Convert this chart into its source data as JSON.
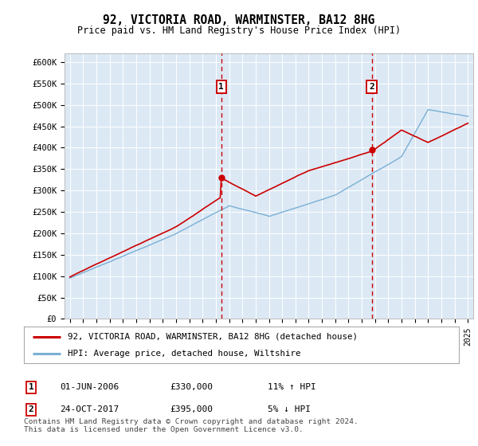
{
  "title": "92, VICTORIA ROAD, WARMINSTER, BA12 8HG",
  "subtitle": "Price paid vs. HM Land Registry's House Price Index (HPI)",
  "background_color": "#dce9f5",
  "plot_bg_color": "#dce9f5",
  "ylim": [
    0,
    620000
  ],
  "yticks": [
    0,
    50000,
    100000,
    150000,
    200000,
    250000,
    300000,
    350000,
    400000,
    450000,
    500000,
    550000,
    600000
  ],
  "ytick_labels": [
    "£0",
    "£50K",
    "£100K",
    "£150K",
    "£200K",
    "£250K",
    "£300K",
    "£350K",
    "£400K",
    "£450K",
    "£500K",
    "£550K",
    "£600K"
  ],
  "sale1_value": 330000,
  "sale1_year": 2006.42,
  "sale1_date_str": "01-JUN-2006",
  "sale1_price_str": "£330,000",
  "sale1_hpi_str": "11% ↑ HPI",
  "sale2_value": 395000,
  "sale2_year": 2017.79,
  "sale2_date_str": "24-OCT-2017",
  "sale2_price_str": "£395,000",
  "sale2_hpi_str": "5% ↓ HPI",
  "red_line_color": "#cc0000",
  "blue_line_color": "#7aafd4",
  "dashed_line_color": "#cc0000",
  "legend1_label": "92, VICTORIA ROAD, WARMINSTER, BA12 8HG (detached house)",
  "legend2_label": "HPI: Average price, detached house, Wiltshire",
  "footer": "Contains HM Land Registry data © Crown copyright and database right 2024.\nThis data is licensed under the Open Government Licence v3.0."
}
